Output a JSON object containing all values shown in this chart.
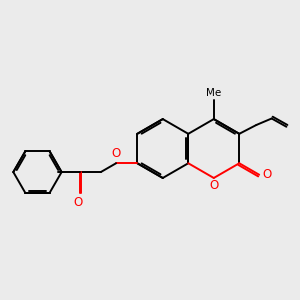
{
  "bg_color": "#ebebeb",
  "bond_color": "#000000",
  "oxygen_color": "#ff0000",
  "lw": 1.4,
  "figsize": [
    3.0,
    3.0
  ],
  "dpi": 100,
  "xlim": [
    0,
    10
  ],
  "ylim": [
    0,
    10
  ]
}
